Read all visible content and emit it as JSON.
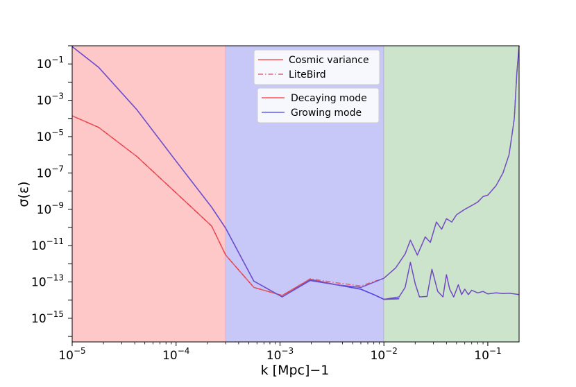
{
  "chart_data": {
    "type": "line",
    "xscale": "log",
    "yscale": "log",
    "xlim": [
      1e-05,
      0.2
    ],
    "ylim": [
      5e-17,
      1.0
    ],
    "xlabel": "k [Mpc]−1",
    "ylabel": "σ(ε)",
    "grid": false,
    "x_ticks": [
      {
        "base": "10",
        "exp": "−5",
        "value": 1e-05
      },
      {
        "base": "10",
        "exp": "−4",
        "value": 0.0001
      },
      {
        "base": "10",
        "exp": "−3",
        "value": 0.001
      },
      {
        "base": "10",
        "exp": "−2",
        "value": 0.01
      },
      {
        "base": "10",
        "exp": "−1",
        "value": 0.1
      }
    ],
    "y_ticks": [
      {
        "base": "10",
        "exp": "−1",
        "value": 0.1
      },
      {
        "base": "10",
        "exp": "−3",
        "value": 0.001
      },
      {
        "base": "10",
        "exp": "−5",
        "value": 1e-05
      },
      {
        "base": "10",
        "exp": "−7",
        "value": 1e-07
      },
      {
        "base": "10",
        "exp": "−9",
        "value": 1e-09
      },
      {
        "base": "10",
        "exp": "−11",
        "value": 1e-11
      },
      {
        "base": "10",
        "exp": "−13",
        "value": 1e-13
      },
      {
        "base": "10",
        "exp": "−15",
        "value": 1e-15
      }
    ],
    "regions": [
      {
        "name": "low-k-region",
        "x0": 1e-05,
        "x1": 0.0003,
        "color": "#ffc8c8",
        "edge": "#c89ac8"
      },
      {
        "name": "mid-k-region",
        "x0": 0.0003,
        "x1": 0.01,
        "color": "#c8c8f8",
        "edge": "#9a9a9a"
      },
      {
        "name": "high-k-region",
        "x0": 0.01,
        "x1": 0.2,
        "color": "#cce4cc",
        "edge": "#9a9a9a"
      }
    ],
    "legend_upper": {
      "position": "top-center",
      "entries": [
        {
          "label": "Cosmic variance",
          "color": "#ff5555",
          "dash": "solid"
        },
        {
          "label": "LiteBird",
          "color": "#dd6677",
          "dash": "dashdot"
        }
      ]
    },
    "legend_lower": {
      "position": "top-center",
      "entries": [
        {
          "label": "Decaying mode",
          "color": "#ff5555",
          "dash": "solid"
        },
        {
          "label": "Growing mode",
          "color": "#6060ee",
          "dash": "solid"
        }
      ]
    },
    "series": [
      {
        "name": "Decaying mode (cosmic variance)",
        "color": "#ee3333",
        "dash": "solid",
        "x": [
          1e-05,
          1.8e-05,
          4.2e-05,
          0.0001,
          0.00022,
          0.0003,
          0.00056,
          0.00105,
          0.00195,
          0.0035,
          0.006,
          0.008,
          0.01,
          0.014
        ],
        "y": [
          0.00014,
          3.2e-05,
          8e-07,
          8e-09,
          1.2e-10,
          3e-12,
          5e-14,
          1.8e-14,
          1.4e-13,
          7e-14,
          4e-14,
          2e-14,
          1.1e-14,
          1.2e-14
        ]
      },
      {
        "name": "Growing mode (cosmic variance)",
        "color": "#4a4af0",
        "dash": "solid",
        "x": [
          1e-05,
          1.8e-05,
          4.2e-05,
          0.0001,
          0.00022,
          0.0003,
          0.00056,
          0.00105,
          0.00195,
          0.0035,
          0.006,
          0.008,
          0.01,
          0.014
        ],
        "y": [
          0.9,
          0.065,
          0.0003,
          4.5e-07,
          1.3e-09,
          9e-11,
          1.1e-13,
          1.5e-14,
          1.2e-13,
          7e-14,
          4e-14,
          2e-14,
          1.1e-14,
          1.2e-14
        ]
      },
      {
        "name": "Decaying mode (LiteBird)",
        "color": "#e06070",
        "dash": "dashdot",
        "x": [
          1e-05,
          1.8e-05,
          4.2e-05,
          0.0001,
          0.00022,
          0.0003,
          0.00056,
          0.00105,
          0.00195,
          0.0035,
          0.006,
          0.01,
          0.013,
          0.016,
          0.018,
          0.021,
          0.025,
          0.028,
          0.032,
          0.036,
          0.04,
          0.045,
          0.05,
          0.06,
          0.07,
          0.08,
          0.09,
          0.1,
          0.12,
          0.14,
          0.16,
          0.17,
          0.18,
          0.19,
          0.2
        ],
        "y": [
          0.00014,
          3.2e-05,
          8e-07,
          8e-09,
          1.2e-10,
          3e-12,
          5e-14,
          1.8e-14,
          1.5e-13,
          9e-14,
          6e-14,
          1.6e-13,
          6e-13,
          3.5e-12,
          2e-11,
          3e-12,
          3e-11,
          1.5e-11,
          2e-10,
          8e-11,
          3e-10,
          2e-10,
          5e-10,
          1e-09,
          1.6e-09,
          2.5e-09,
          5e-09,
          6e-09,
          2e-08,
          1e-07,
          1e-06,
          1e-05,
          0.0001,
          0.03,
          1.0
        ]
      },
      {
        "name": "Growing mode (LiteBird)",
        "color": "#7050c8",
        "dash": "solid",
        "x": [
          1e-05,
          1.8e-05,
          4.2e-05,
          0.0001,
          0.00022,
          0.0003,
          0.00056,
          0.00105,
          0.00195,
          0.0035,
          0.006,
          0.01,
          0.013,
          0.016,
          0.018,
          0.021,
          0.025,
          0.028,
          0.032,
          0.036,
          0.04,
          0.045,
          0.05,
          0.06,
          0.07,
          0.08,
          0.09,
          0.1,
          0.12,
          0.14,
          0.16,
          0.17,
          0.18,
          0.19,
          0.2
        ],
        "y": [
          0.9,
          0.065,
          0.0003,
          4.5e-07,
          1.3e-09,
          9e-11,
          1.1e-13,
          1.5e-14,
          1.3e-13,
          7e-14,
          5e-14,
          1.6e-13,
          6e-13,
          3.5e-12,
          2e-11,
          3e-12,
          3e-11,
          1.5e-11,
          2e-10,
          8e-11,
          3e-10,
          2e-10,
          5e-10,
          1e-09,
          1.6e-09,
          2.5e-09,
          5e-09,
          6e-09,
          2e-08,
          1e-07,
          1e-06,
          1e-05,
          0.0001,
          0.03,
          1.0
        ]
      },
      {
        "name": "Cosmic variance floor (high k)",
        "color": "#7048c0",
        "dash": "solid",
        "x": [
          0.01,
          0.014,
          0.016,
          0.018,
          0.02,
          0.022,
          0.026,
          0.029,
          0.033,
          0.037,
          0.04,
          0.043,
          0.047,
          0.052,
          0.056,
          0.06,
          0.065,
          0.07,
          0.08,
          0.09,
          0.1,
          0.12,
          0.14,
          0.16,
          0.18,
          0.2
        ],
        "y": [
          1.1e-14,
          1.5e-14,
          5e-14,
          1.2e-12,
          8e-14,
          1.5e-14,
          1.6e-14,
          5e-13,
          3e-14,
          1.5e-14,
          2.5e-13,
          4e-14,
          1.5e-14,
          7e-14,
          2e-14,
          4e-14,
          2e-14,
          3.5e-14,
          2.5e-14,
          3e-14,
          2.2e-14,
          2.5e-14,
          2.3e-14,
          2.4e-14,
          2.2e-14,
          2e-14
        ]
      }
    ]
  }
}
